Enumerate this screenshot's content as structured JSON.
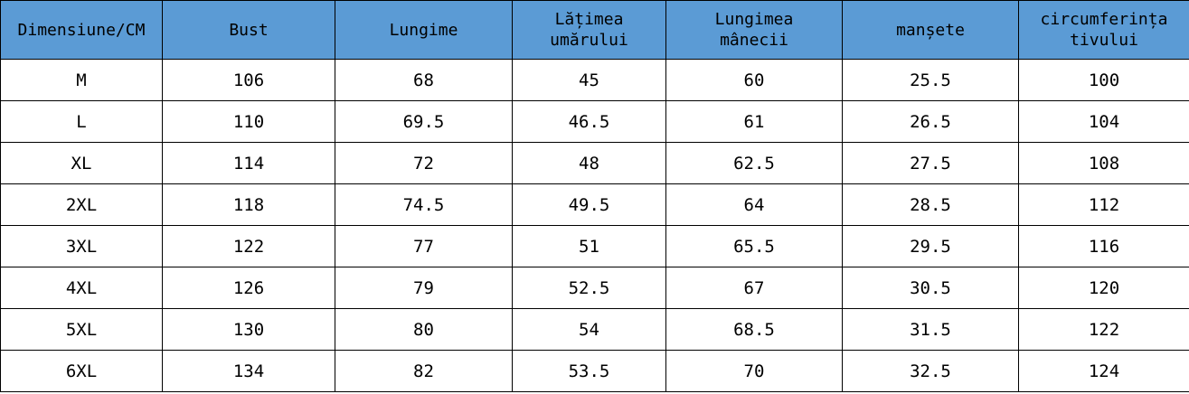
{
  "table": {
    "header_bg": "#5b9bd5",
    "headers": [
      "Dimensiune/CM",
      "Bust",
      "Lungime",
      "Lățimea\numărului",
      "Lungimea\nmânecii",
      "manșete",
      "circumferința\ntivului"
    ],
    "rows": [
      [
        "M",
        "106",
        "68",
        "45",
        "60",
        "25.5",
        "100"
      ],
      [
        "L",
        "110",
        "69.5",
        "46.5",
        "61",
        "26.5",
        "104"
      ],
      [
        "XL",
        "114",
        "72",
        "48",
        "62.5",
        "27.5",
        "108"
      ],
      [
        "2XL",
        "118",
        "74.5",
        "49.5",
        "64",
        "28.5",
        "112"
      ],
      [
        "3XL",
        "122",
        "77",
        "51",
        "65.5",
        "29.5",
        "116"
      ],
      [
        "4XL",
        "126",
        "79",
        "52.5",
        "67",
        "30.5",
        "120"
      ],
      [
        "5XL",
        "130",
        "80",
        "54",
        "68.5",
        "31.5",
        "122"
      ],
      [
        "6XL",
        "134",
        "82",
        "53.5",
        "70",
        "32.5",
        "124"
      ]
    ]
  }
}
